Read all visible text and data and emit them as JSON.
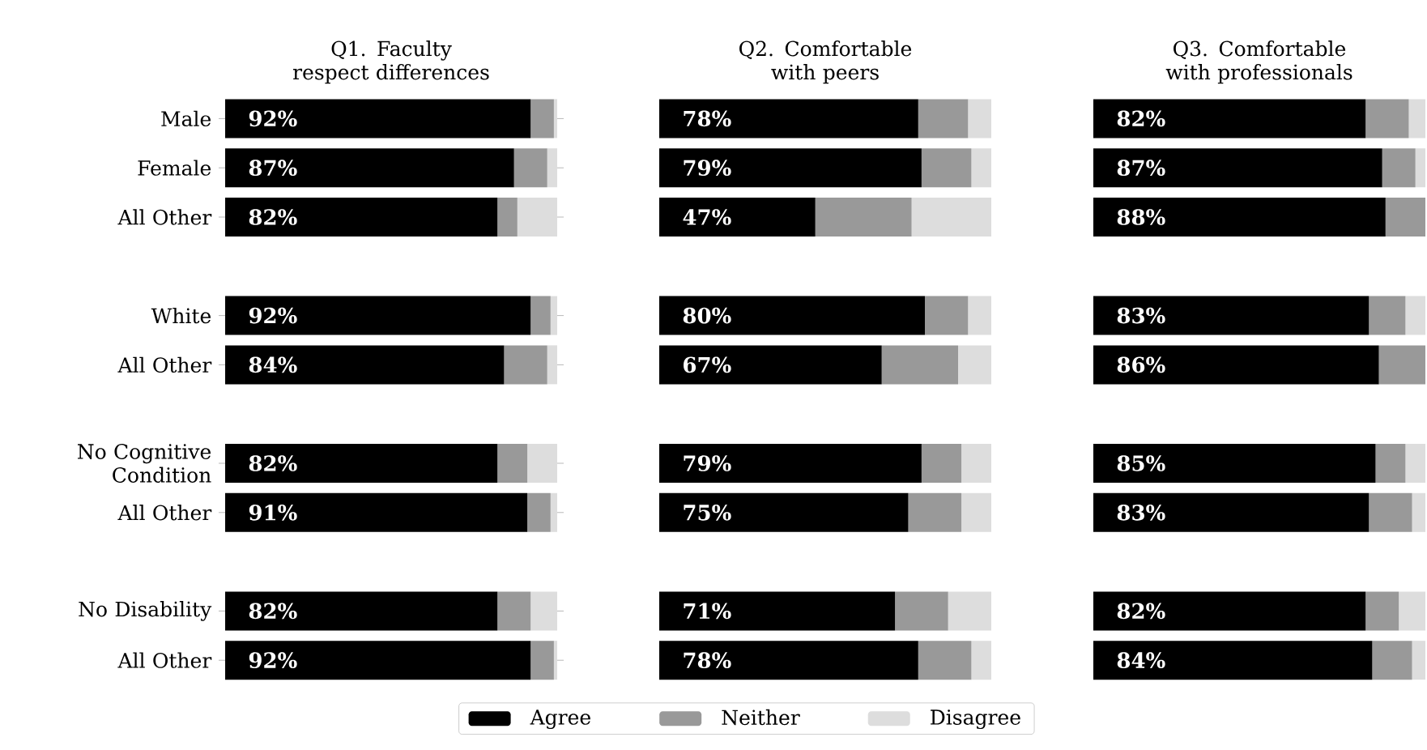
{
  "chart_data": [
    {
      "type": "bar",
      "orientation": "horizontal",
      "stacked": true,
      "xlim": [
        0,
        100
      ],
      "tick_labels": "y",
      "title": "Q1. Faculty respect differences",
      "categories": [
        "Male",
        "Female",
        "All Other",
        null,
        "White",
        "All Other",
        null,
        "No Cognitive Condition",
        "All Other",
        null,
        "No Disability",
        "All Other"
      ],
      "series": [
        {
          "color": "#000000",
          "values": [
            92,
            87,
            82,
            null,
            92,
            84,
            null,
            82,
            91,
            null,
            82,
            92
          ],
          "value_labels": [
            "92%",
            "87%",
            "82%",
            null,
            "92%",
            "84%",
            null,
            "82%",
            "91%",
            null,
            "82%",
            "92%"
          ]
        },
        {
          "color": "#999999",
          "values": [
            7,
            10,
            6,
            null,
            6,
            13,
            null,
            9,
            7,
            null,
            10,
            7
          ]
        },
        {
          "color": "#dddddd",
          "values": [
            1,
            3,
            12,
            null,
            2,
            3,
            null,
            9,
            2,
            null,
            8,
            1
          ]
        }
      ]
    },
    {
      "type": "bar",
      "orientation": "horizontal",
      "stacked": true,
      "xlim": [
        0,
        100
      ],
      "tick_labels": false,
      "title": "Q2. Comfortable with peers",
      "legend": "bottom",
      "categories": [
        null,
        null,
        null,
        null,
        null,
        null,
        null,
        null,
        null,
        null,
        null,
        null
      ],
      "series": [
        {
          "name": "Agree",
          "color": "#000000",
          "values": [
            78,
            79,
            47,
            null,
            80,
            67,
            null,
            79,
            75,
            null,
            71,
            78
          ],
          "value_labels": [
            "78%",
            "79%",
            "47%",
            null,
            "80%",
            "67%",
            null,
            "79%",
            "75%",
            null,
            "71%",
            "78%"
          ]
        },
        {
          "name": "Neither",
          "color": "#999999",
          "values": [
            15,
            15,
            29,
            null,
            13,
            23,
            null,
            12,
            16,
            null,
            16,
            16
          ]
        },
        {
          "name": "Disagree",
          "color": "#dddddd",
          "values": [
            7,
            6,
            24,
            null,
            7,
            10,
            null,
            9,
            9,
            null,
            13,
            6
          ]
        }
      ]
    },
    {
      "type": "bar",
      "orientation": "horizontal",
      "stacked": true,
      "xlim": [
        0,
        100
      ],
      "tick_labels": false,
      "title": "Q3. Comfortable with professionals",
      "categories": [
        null,
        null,
        null,
        null,
        null,
        null,
        null,
        null,
        null,
        null,
        null,
        null
      ],
      "series": [
        {
          "color": "#000000",
          "values": [
            82,
            87,
            88,
            null,
            83,
            86,
            null,
            85,
            83,
            null,
            82,
            84
          ],
          "value_labels": [
            "82%",
            "87%",
            "88%",
            null,
            "83%",
            "86%",
            null,
            "85%",
            "83%",
            null,
            "82%",
            "84%"
          ]
        },
        {
          "color": "#999999",
          "values": [
            13,
            10,
            12,
            null,
            11,
            14,
            null,
            9,
            13,
            null,
            10,
            12
          ]
        },
        {
          "color": "#dddddd",
          "values": [
            5,
            3,
            0,
            null,
            6,
            0,
            null,
            6,
            4,
            null,
            8,
            4
          ]
        }
      ]
    }
  ]
}
